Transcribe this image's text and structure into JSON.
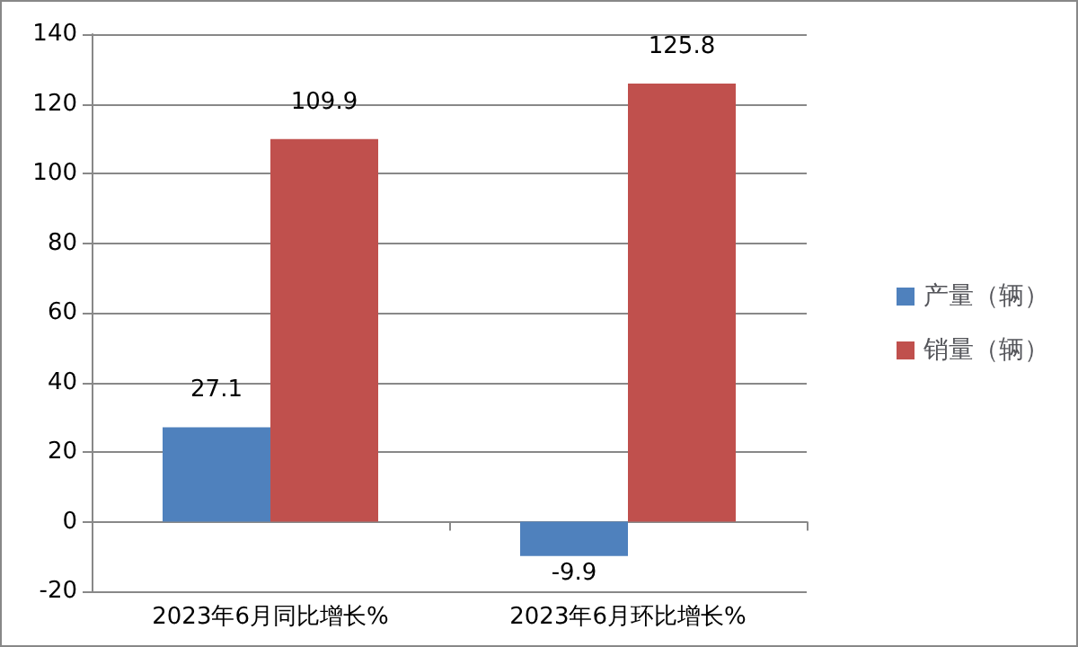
{
  "chart_data": {
    "type": "bar",
    "categories": [
      "2023年6月同比增长%",
      "2023年6月环比增长%"
    ],
    "series": [
      {
        "name": "产量（辆）",
        "color": "#4f81bd",
        "values": [
          27.1,
          -9.9
        ]
      },
      {
        "name": "销量（辆）",
        "color": "#c0504d",
        "values": [
          109.9,
          125.8
        ]
      }
    ],
    "ylim": [
      -20,
      140
    ],
    "yticks": [
      -20,
      0,
      20,
      40,
      60,
      80,
      100,
      120,
      140
    ],
    "grid": "y",
    "legend": "right",
    "data_labels": true
  }
}
